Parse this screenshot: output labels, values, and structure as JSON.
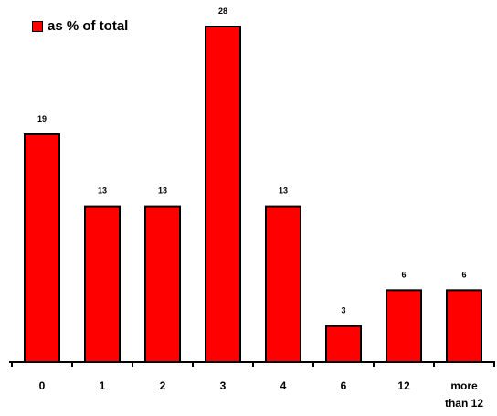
{
  "chart_data": {
    "type": "bar",
    "categories": [
      "0",
      "1",
      "2",
      "3",
      "4",
      "6",
      "12",
      "more than 12"
    ],
    "category_lines": [
      [
        "0"
      ],
      [
        "1"
      ],
      [
        "2"
      ],
      [
        "3"
      ],
      [
        "4"
      ],
      [
        "6"
      ],
      [
        "12"
      ],
      [
        "more",
        "than 12"
      ]
    ],
    "series": [
      {
        "name": "as % of total",
        "values": [
          19,
          13,
          13,
          28,
          13,
          3,
          6,
          6
        ],
        "color": "#ff0000"
      }
    ],
    "data_labels": [
      "19",
      "13",
      "13",
      "28",
      "13",
      "3",
      "6",
      "6"
    ],
    "title": "",
    "xlabel": "",
    "ylabel": "",
    "ylim": [
      0,
      28
    ],
    "grid": false,
    "legend_position": "top-left"
  }
}
